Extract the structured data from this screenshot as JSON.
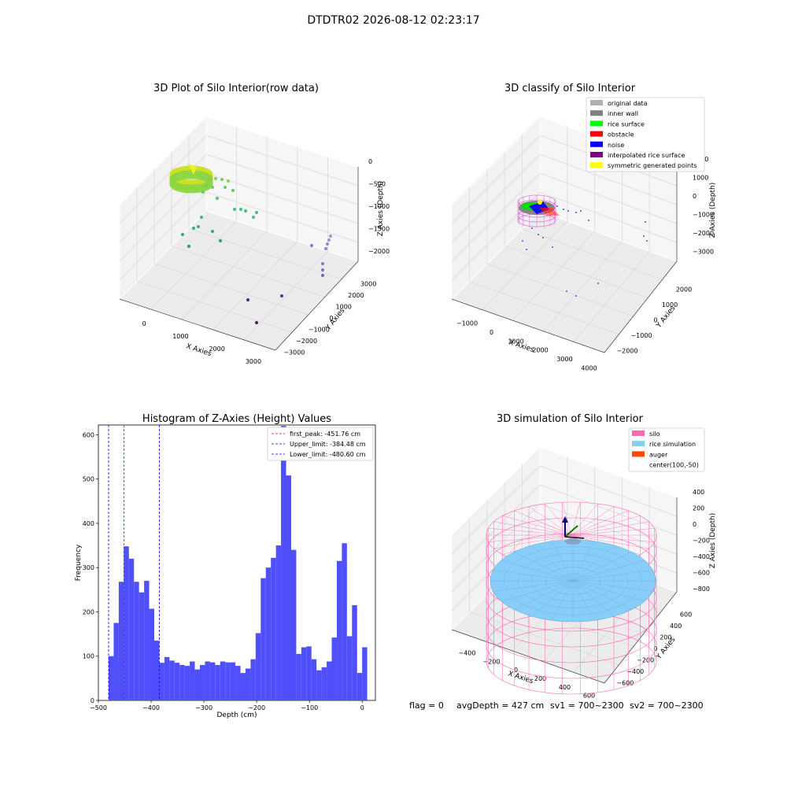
{
  "suptitle": "DTDTR02 2026-08-12 02:23:17",
  "status_line": {
    "flag": "flag = 0",
    "avg_depth": "avgDepth = 427 cm",
    "sv1": "sv1 = 700~2300",
    "sv2": "sv2 = 700~2300"
  },
  "colors": {
    "histogram_bar": "#4f4ffb",
    "first_peak_line": "#ff0000",
    "limit_line": "#0000ff",
    "rice_surface_green": "#88dd33",
    "silo_wire": "#ff69b4",
    "rice_simulation": "#87cefa"
  },
  "chart_data": [
    {
      "type": "scatter3d",
      "title": "3D Plot of Silo Interior(row data)",
      "xlabel": "X Axies",
      "ylabel": "Y Axies",
      "zlabel": "Z Axies (Depth)",
      "x_ticks": [
        "0",
        "1000",
        "2000",
        "3000"
      ],
      "y_ticks": [
        "−3000",
        "−2000",
        "−1000",
        "0",
        "1000",
        "2000",
        "3000"
      ],
      "z_ticks": [
        "0",
        "−500",
        "−1000",
        "−1500",
        "−2000"
      ]
    },
    {
      "type": "scatter3d",
      "title": "3D classify of Silo Interior",
      "xlabel": "X Axies",
      "ylabel": "Y Axies",
      "zlabel": "Z Axies (Depth)",
      "x_ticks": [
        "−1000",
        "0",
        "1000",
        "2000",
        "3000",
        "4000"
      ],
      "y_ticks": [
        "−2000",
        "−1000",
        "0",
        "1000",
        "2000"
      ],
      "z_ticks": [
        "2000",
        "1000",
        "0",
        "−1000",
        "−2000",
        "−3000"
      ],
      "legend": {
        "position": "top-right",
        "entries": [
          {
            "label": "original data",
            "color": "#b0b0b0"
          },
          {
            "label": "inner wall",
            "color": "#808080"
          },
          {
            "label": "rice surface",
            "color": "#00ff00"
          },
          {
            "label": "obstacle",
            "color": "#ff0000"
          },
          {
            "label": "noise",
            "color": "#0000ff"
          },
          {
            "label": "interpolated rice surface",
            "color": "#800080"
          },
          {
            "label": "symmetric generated points",
            "color": "#ffff00"
          }
        ]
      }
    },
    {
      "type": "bar",
      "title": "Histogram of Z-Axies (Height) Values",
      "xlabel": "Depth (cm)",
      "ylabel": "Frequency",
      "xlim": [
        -500,
        25
      ],
      "ylim": [
        0,
        622
      ],
      "x_ticks": [
        -500,
        -400,
        -300,
        -200,
        -100,
        0
      ],
      "y_ticks": [
        0,
        100,
        200,
        300,
        400,
        500,
        600
      ],
      "x_tick_labels": [
        "−500",
        "−400",
        "−300",
        "−200",
        "−100",
        "0"
      ],
      "y_tick_labels": [
        "0",
        "100",
        "200",
        "300",
        "400",
        "500",
        "600"
      ],
      "bin_start": -480.6,
      "bin_width": 9.61,
      "values": [
        100,
        175,
        268,
        348,
        320,
        268,
        244,
        270,
        207,
        135,
        85,
        98,
        90,
        85,
        80,
        78,
        88,
        70,
        80,
        88,
        86,
        80,
        88,
        86,
        86,
        78,
        62,
        72,
        93,
        152,
        276,
        300,
        322,
        350,
        620,
        508,
        340,
        105,
        120,
        122,
        93,
        68,
        75,
        88,
        142,
        315,
        355,
        145,
        215,
        62,
        120
      ],
      "vlines": [
        {
          "label": "first_peak: -451.76 cm",
          "x": -451.76,
          "color": "#ff0000"
        },
        {
          "label": "Upper_limit: -384.48 cm",
          "x": -384.48,
          "color": "#0000ff"
        },
        {
          "label": "Lower_limit: -480.60 cm",
          "x": -480.6,
          "color": "#0000ff"
        }
      ],
      "legend": {
        "position": "top-right"
      }
    },
    {
      "type": "surface3d",
      "title": "3D simulation of Silo Interior",
      "xlabel": "X Axies",
      "ylabel": "Y Axies",
      "zlabel": "Z Axies (Depth)",
      "x_ticks": [
        "−400",
        "−200",
        "0",
        "200",
        "400",
        "600"
      ],
      "y_ticks": [
        "−600",
        "−400",
        "−200",
        "0",
        "200",
        "400",
        "600"
      ],
      "z_ticks": [
        "400",
        "200",
        "0",
        "−200",
        "−400",
        "−600",
        "−800"
      ],
      "legend": {
        "position": "top-right",
        "entries": [
          {
            "label": "silo",
            "color": "#ff69b4"
          },
          {
            "label": "rice simulation",
            "color": "#87ceeb"
          },
          {
            "label": "auger",
            "color": "#ff4500"
          },
          {
            "label": "center(100,-50)",
            "color": ""
          }
        ]
      }
    }
  ]
}
